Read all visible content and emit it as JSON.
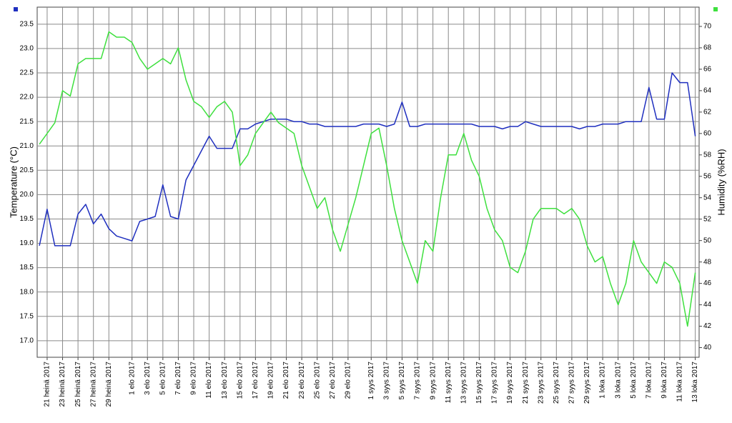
{
  "chart_data": {
    "type": "line",
    "y_label": "Temperature (°C)",
    "y2_label": "Humidity (%RH)",
    "grid": true,
    "x": [
      "2017-07-20",
      "2017-07-21",
      "2017-07-22",
      "2017-07-23",
      "2017-07-24",
      "2017-07-25",
      "2017-07-26",
      "2017-07-27",
      "2017-07-28",
      "2017-07-29",
      "2017-07-30",
      "2017-07-31",
      "2017-08-01",
      "2017-08-02",
      "2017-08-03",
      "2017-08-04",
      "2017-08-05",
      "2017-08-06",
      "2017-08-07",
      "2017-08-08",
      "2017-08-09",
      "2017-08-10",
      "2017-08-11",
      "2017-08-12",
      "2017-08-13",
      "2017-08-14",
      "2017-08-15",
      "2017-08-16",
      "2017-08-17",
      "2017-08-18",
      "2017-08-19",
      "2017-08-20",
      "2017-08-21",
      "2017-08-22",
      "2017-08-23",
      "2017-08-24",
      "2017-08-25",
      "2017-08-26",
      "2017-08-27",
      "2017-08-28",
      "2017-08-29",
      "2017-08-30",
      "2017-08-31",
      "2017-09-01",
      "2017-09-02",
      "2017-09-03",
      "2017-09-04",
      "2017-09-05",
      "2017-09-06",
      "2017-09-07",
      "2017-09-08",
      "2017-09-09",
      "2017-09-10",
      "2017-09-11",
      "2017-09-12",
      "2017-09-13",
      "2017-09-14",
      "2017-09-15",
      "2017-09-16",
      "2017-09-17",
      "2017-09-18",
      "2017-09-19",
      "2017-09-20",
      "2017-09-21",
      "2017-09-22",
      "2017-09-23",
      "2017-09-24",
      "2017-09-25",
      "2017-09-26",
      "2017-09-27",
      "2017-09-28",
      "2017-09-29",
      "2017-09-30",
      "2017-10-01",
      "2017-10-02",
      "2017-10-03",
      "2017-10-04",
      "2017-10-05",
      "2017-10-06",
      "2017-10-07",
      "2017-10-08",
      "2017-10-09",
      "2017-10-10",
      "2017-10-11",
      "2017-10-12",
      "2017-10-13"
    ],
    "series": [
      {
        "name": "Temperature",
        "color": "#1f2fbf",
        "axis": "y",
        "values": [
          18.95,
          19.7,
          18.95,
          18.95,
          18.95,
          19.6,
          19.8,
          19.4,
          19.6,
          19.3,
          19.15,
          19.1,
          19.05,
          19.45,
          19.5,
          19.55,
          20.2,
          19.55,
          19.5,
          20.3,
          20.6,
          20.9,
          21.2,
          20.95,
          20.95,
          20.95,
          21.35,
          21.35,
          21.45,
          21.5,
          21.55,
          21.55,
          21.55,
          21.5,
          21.5,
          21.45,
          21.45,
          21.4,
          21.4,
          21.4,
          21.4,
          21.4,
          21.45,
          21.45,
          21.45,
          21.4,
          21.45,
          21.9,
          21.4,
          21.4,
          21.45,
          21.45,
          21.45,
          21.45,
          21.45,
          21.45,
          21.45,
          21.4,
          21.4,
          21.4,
          21.35,
          21.4,
          21.4,
          21.5,
          21.45,
          21.4,
          21.4,
          21.4,
          21.4,
          21.4,
          21.35,
          21.4,
          21.4,
          21.45,
          21.45,
          21.45,
          21.5,
          21.5,
          21.5,
          22.2,
          21.55,
          21.55,
          22.5,
          22.3,
          22.3,
          21.2
        ]
      },
      {
        "name": "Humidity",
        "color": "#3ee03e",
        "axis": "y2",
        "values": [
          59,
          60,
          61,
          64,
          63.5,
          66.5,
          67,
          67,
          67,
          69.5,
          69,
          69,
          68.5,
          67,
          66,
          66.5,
          67,
          66.5,
          68,
          65,
          63,
          62.5,
          61.5,
          62.5,
          63,
          62,
          57,
          58,
          60,
          61,
          62,
          61,
          60.5,
          60,
          57,
          55,
          53,
          54,
          51,
          49,
          51.5,
          54,
          57,
          60,
          60.5,
          57,
          53,
          50,
          48,
          46,
          50,
          49,
          54,
          58,
          58,
          60,
          57.5,
          56,
          53,
          51,
          50,
          47.5,
          47,
          49,
          52,
          53,
          53,
          53,
          52.5,
          53,
          52,
          49.5,
          48,
          48.5,
          46,
          44,
          46,
          50,
          48,
          47,
          46,
          48,
          47.5,
          46,
          42,
          47
        ]
      }
    ],
    "xlim": [
      "2017-07-19T17:00",
      "2017-10-13T12:00"
    ],
    "xticks": [
      {
        "value": "2017-07-21",
        "label": "21 heinä 2017"
      },
      {
        "value": "2017-07-23",
        "label": "23 heinä 2017"
      },
      {
        "value": "2017-07-25",
        "label": "25 heinä 2017"
      },
      {
        "value": "2017-07-27",
        "label": "27 heinä 2017"
      },
      {
        "value": "2017-07-29",
        "label": "29 heinä 2017"
      },
      {
        "value": "2017-08-01",
        "label": "1 elo 2017"
      },
      {
        "value": "2017-08-03",
        "label": "3 elo 2017"
      },
      {
        "value": "2017-08-05",
        "label": "5 elo 2017"
      },
      {
        "value": "2017-08-07",
        "label": "7 elo 2017"
      },
      {
        "value": "2017-08-09",
        "label": "9 elo 2017"
      },
      {
        "value": "2017-08-11",
        "label": "11 elo 2017"
      },
      {
        "value": "2017-08-13",
        "label": "13 elo 2017"
      },
      {
        "value": "2017-08-15",
        "label": "15 elo 2017"
      },
      {
        "value": "2017-08-17",
        "label": "17 elo 2017"
      },
      {
        "value": "2017-08-19",
        "label": "19 elo 2017"
      },
      {
        "value": "2017-08-21",
        "label": "21 elo 2017"
      },
      {
        "value": "2017-08-23",
        "label": "23 elo 2017"
      },
      {
        "value": "2017-08-25",
        "label": "25 elo 2017"
      },
      {
        "value": "2017-08-27",
        "label": "27 elo 2017"
      },
      {
        "value": "2017-08-29",
        "label": "29 elo 2017"
      },
      {
        "value": "2017-09-01",
        "label": "1 syys 2017"
      },
      {
        "value": "2017-09-03",
        "label": "3 syys 2017"
      },
      {
        "value": "2017-09-05",
        "label": "5 syys 2017"
      },
      {
        "value": "2017-09-07",
        "label": "7 syys 2017"
      },
      {
        "value": "2017-09-09",
        "label": "9 syys 2017"
      },
      {
        "value": "2017-09-11",
        "label": "11 syys 2017"
      },
      {
        "value": "2017-09-13",
        "label": "13 syys 2017"
      },
      {
        "value": "2017-09-15",
        "label": "15 syys 2017"
      },
      {
        "value": "2017-09-17",
        "label": "17 syys 2017"
      },
      {
        "value": "2017-09-19",
        "label": "19 syys 2017"
      },
      {
        "value": "2017-09-21",
        "label": "21 syys 2017"
      },
      {
        "value": "2017-09-23",
        "label": "23 syys 2017"
      },
      {
        "value": "2017-09-25",
        "label": "25 syys 2017"
      },
      {
        "value": "2017-09-27",
        "label": "27 syys 2017"
      },
      {
        "value": "2017-09-29",
        "label": "29 syys 2017"
      },
      {
        "value": "2017-10-01",
        "label": "1 loka 2017"
      },
      {
        "value": "2017-10-03",
        "label": "3 loka 2017"
      },
      {
        "value": "2017-10-05",
        "label": "5 loka 2017"
      },
      {
        "value": "2017-10-07",
        "label": "7 loka 2017"
      },
      {
        "value": "2017-10-09",
        "label": "9 loka 2017"
      },
      {
        "value": "2017-10-11",
        "label": "11 loka 2017"
      },
      {
        "value": "2017-10-13",
        "label": "13 loka 2017"
      }
    ],
    "ylim": [
      16.66,
      23.85
    ],
    "yticks": [
      {
        "value": 17,
        "label": "17.0"
      },
      17.5,
      {
        "value": 18,
        "label": "18.0"
      },
      18.5,
      {
        "value": 19,
        "label": "19.0"
      },
      19.5,
      {
        "value": 20,
        "label": "20.0"
      },
      20.5,
      {
        "value": 21,
        "label": "21.0"
      },
      21.5,
      {
        "value": 22,
        "label": "22.0"
      },
      22.5,
      {
        "value": 23,
        "label": "23.0"
      },
      23.5
    ],
    "y2lim": [
      39.1,
      71.8
    ],
    "y2ticks": [
      40,
      42,
      44,
      46,
      48,
      50,
      52,
      54,
      56,
      58,
      60,
      62,
      64,
      66,
      68,
      70
    ]
  }
}
